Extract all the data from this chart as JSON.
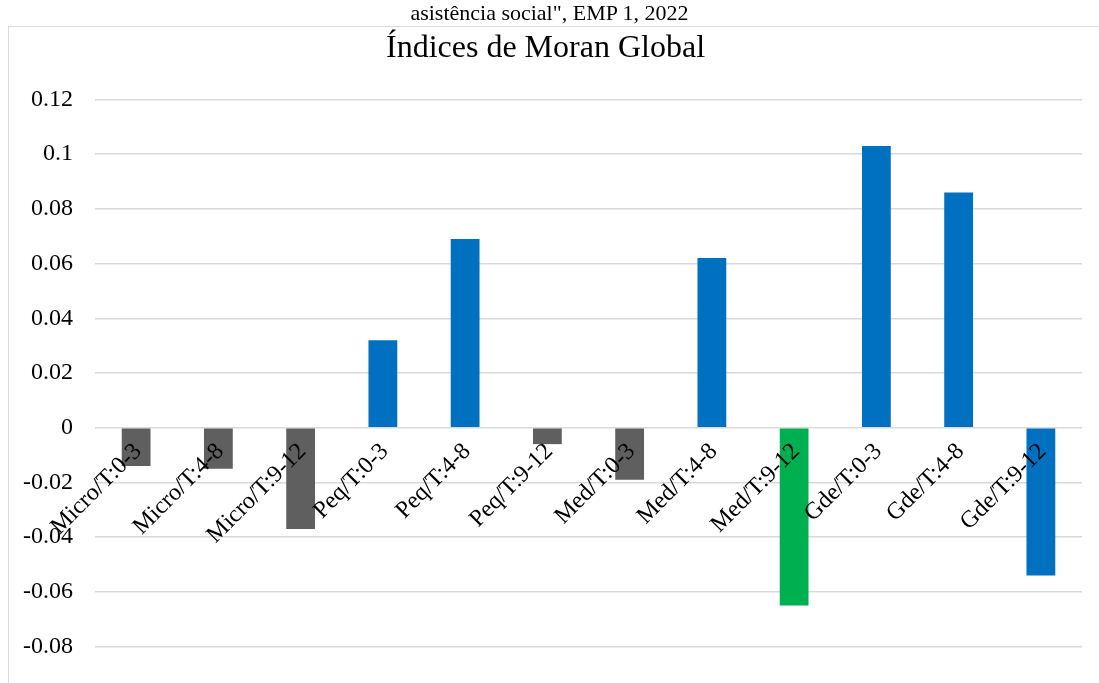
{
  "chart_data": {
    "type": "bar",
    "title": "Índices de Moran Global",
    "annotations": [
      "asistência social\", EMP 1, 2022"
    ],
    "categories": [
      "Micro/T:0-3",
      "Micro/T:4-8",
      "Micro/T:9-12",
      "Peq/T:0-3",
      "Peq/T:4-8",
      "Peq/T:9-12",
      "Med/T:0-3",
      "Med/T:4-8",
      "Med/T:9-12",
      "Gde/T:0-3",
      "Gde/T:4-8",
      "Gde/T:9-12"
    ],
    "values": [
      -0.014,
      -0.015,
      -0.037,
      0.032,
      0.069,
      -0.006,
      -0.019,
      0.062,
      -0.065,
      0.103,
      0.086,
      -0.054
    ],
    "colors": [
      "#5f5f5f",
      "#5f5f5f",
      "#5f5f5f",
      "#0070c0",
      "#0070c0",
      "#5f5f5f",
      "#5f5f5f",
      "#0070c0",
      "#00b050",
      "#0070c0",
      "#0070c0",
      "#0070c0"
    ],
    "ylim": [
      -0.08,
      0.12
    ],
    "yticks": [
      -0.08,
      -0.06,
      -0.04,
      -0.02,
      0,
      0.02,
      0.04,
      0.06,
      0.08,
      0.1,
      0.12
    ],
    "grid": "y"
  }
}
